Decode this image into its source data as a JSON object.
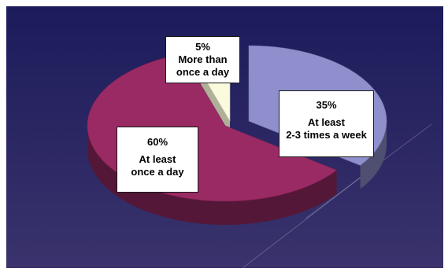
{
  "chart_data": {
    "type": "pie",
    "style": "3d-exploded",
    "slices": [
      {
        "percent_label": "35%",
        "line1": "At least",
        "line2": "2-3 times a week",
        "value": 35,
        "color": "#8f8fcd"
      },
      {
        "percent_label": "60%",
        "line1": "At least",
        "line2": "once a day",
        "value": 60,
        "color": "#9a2a64"
      },
      {
        "percent_label": "5%",
        "line1": "More than",
        "line2": "once a day",
        "value": 5,
        "color": "#fafadc"
      }
    ]
  },
  "colors": {
    "background_top": "#1c1b5b",
    "background_bottom": "#3a336c"
  }
}
